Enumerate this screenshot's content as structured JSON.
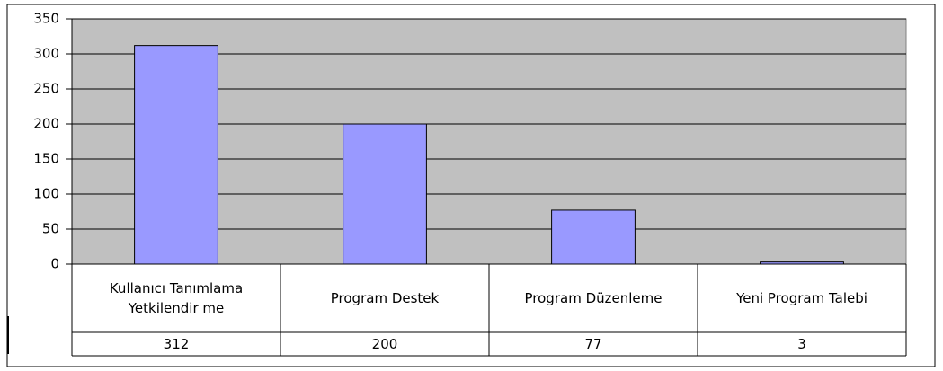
{
  "chart_data": {
    "type": "bar",
    "categories": [
      "Kullanıcı Tanımlama Yetkilendir me",
      "Program Destek",
      "Program Düzenleme",
      "Yeni Program Talebi"
    ],
    "values": [
      312,
      200,
      77,
      3
    ],
    "color": "#9999ff",
    "ylim": [
      0,
      350
    ],
    "yticks": [
      0,
      50,
      100,
      150,
      200,
      250,
      300,
      350
    ],
    "grid": true
  }
}
